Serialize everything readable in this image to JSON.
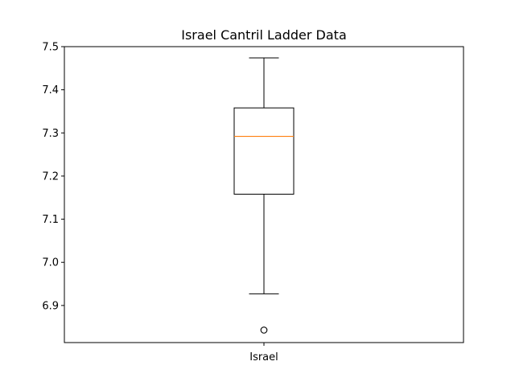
{
  "chart_data": {
    "type": "box",
    "title": "Israel Cantril Ladder Data",
    "xlabel": "",
    "ylabel": "",
    "ylim": [
      6.814,
      7.5
    ],
    "yticks": [
      6.9,
      7.0,
      7.1,
      7.2,
      7.3,
      7.4,
      7.5
    ],
    "ytick_labels": [
      "6.9",
      "7.0",
      "7.1",
      "7.2",
      "7.3",
      "7.4",
      "7.5"
    ],
    "categories": [
      "Israel"
    ],
    "boxes": [
      {
        "category": "Israel",
        "whisker_low": 6.927,
        "q1": 7.158,
        "median": 7.292,
        "q3": 7.358,
        "whisker_high": 7.474,
        "outliers": [
          6.843
        ]
      }
    ],
    "colors": {
      "box": "#000000",
      "median": "#ff7f0e",
      "outlier": "#000000"
    },
    "grid": false
  }
}
